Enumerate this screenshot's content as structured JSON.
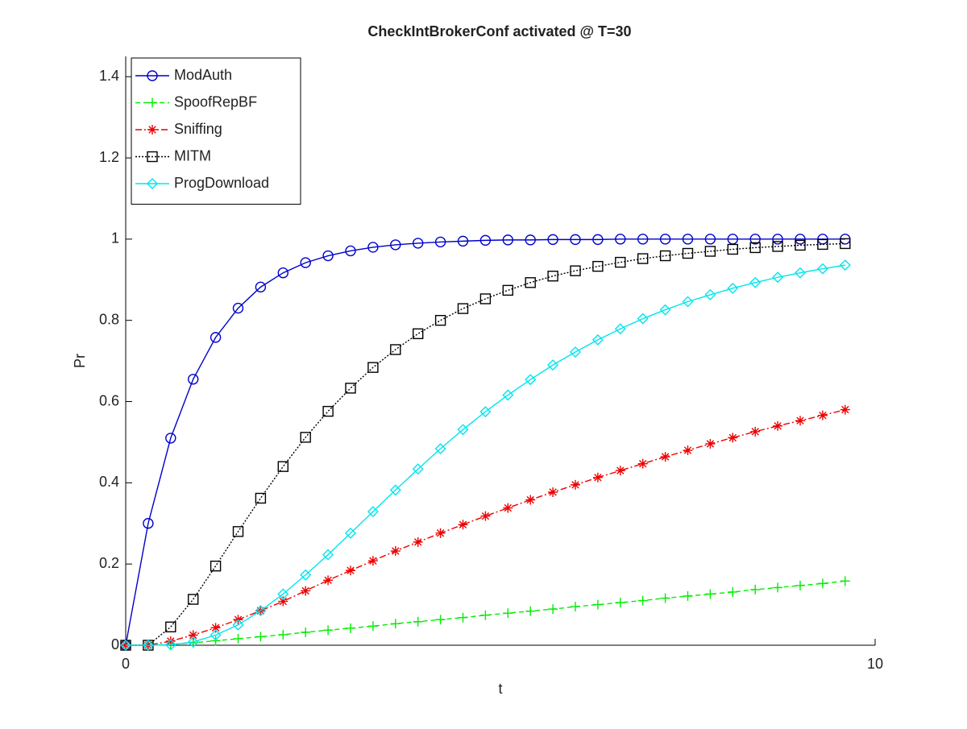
{
  "chart_data": {
    "type": "line",
    "title": "CheckIntBrokerConf activated @ T=30",
    "x_label": "t",
    "y_label": "Pr",
    "x": [
      0,
      0.3,
      0.6,
      0.9,
      1.2,
      1.5,
      1.8,
      2.1,
      2.4,
      2.7,
      3.0,
      3.3,
      3.6,
      3.9,
      4.2,
      4.5,
      4.8,
      5.1,
      5.4,
      5.7,
      6.0,
      6.3,
      6.6,
      6.9,
      7.2,
      7.5,
      7.8,
      8.1,
      8.4,
      8.7,
      9.0,
      9.3,
      9.6
    ],
    "series": [
      {
        "name": "ModAuth",
        "color": "#0000cc",
        "marker": "circle",
        "dash": "solid",
        "values": [
          0,
          0.3,
          0.51,
          0.655,
          0.758,
          0.83,
          0.882,
          0.917,
          0.942,
          0.959,
          0.971,
          0.98,
          0.986,
          0.99,
          0.993,
          0.995,
          0.997,
          0.998,
          0.998,
          0.999,
          0.999,
          0.999,
          1,
          1,
          1,
          1,
          1,
          1,
          1,
          1,
          1,
          1,
          1
        ]
      },
      {
        "name": "SpoofRepBF",
        "color": "#00ee00",
        "marker": "plus",
        "dash": "dashed",
        "values": [
          0,
          0,
          0.002,
          0.006,
          0.011,
          0.016,
          0.021,
          0.026,
          0.032,
          0.037,
          0.042,
          0.047,
          0.053,
          0.058,
          0.063,
          0.068,
          0.074,
          0.079,
          0.084,
          0.089,
          0.095,
          0.1,
          0.105,
          0.11,
          0.116,
          0.121,
          0.126,
          0.131,
          0.137,
          0.142,
          0.147,
          0.152,
          0.158
        ]
      },
      {
        "name": "Sniffing",
        "color": "#ee0000",
        "marker": "asterisk",
        "dash": "dashdot",
        "values": [
          0,
          0,
          0.01,
          0.025,
          0.043,
          0.063,
          0.085,
          0.108,
          0.134,
          0.16,
          0.184,
          0.208,
          0.232,
          0.254,
          0.276,
          0.297,
          0.318,
          0.338,
          0.358,
          0.377,
          0.395,
          0.413,
          0.43,
          0.447,
          0.464,
          0.48,
          0.496,
          0.511,
          0.526,
          0.54,
          0.553,
          0.566,
          0.58
        ]
      },
      {
        "name": "MITM",
        "color": "#000000",
        "marker": "square",
        "dash": "dotted",
        "values": [
          0,
          0,
          0.045,
          0.113,
          0.195,
          0.28,
          0.362,
          0.44,
          0.512,
          0.576,
          0.633,
          0.684,
          0.728,
          0.767,
          0.8,
          0.829,
          0.853,
          0.874,
          0.893,
          0.909,
          0.922,
          0.933,
          0.943,
          0.952,
          0.959,
          0.965,
          0.97,
          0.975,
          0.979,
          0.982,
          0.985,
          0.987,
          0.989
        ]
      },
      {
        "name": "ProgDownload",
        "color": "#00e5ee",
        "marker": "diamond",
        "dash": "solid",
        "values": [
          0,
          0,
          0.001,
          0.008,
          0.025,
          0.05,
          0.085,
          0.126,
          0.173,
          0.223,
          0.276,
          0.329,
          0.382,
          0.434,
          0.484,
          0.531,
          0.575,
          0.616,
          0.654,
          0.69,
          0.722,
          0.752,
          0.779,
          0.804,
          0.826,
          0.846,
          0.863,
          0.879,
          0.893,
          0.906,
          0.917,
          0.927,
          0.936
        ]
      }
    ],
    "xlim": [
      0,
      10
    ],
    "xticks": [
      0,
      10
    ],
    "ylim": [
      0,
      1.45
    ],
    "yticks": [
      0,
      0.2,
      0.4,
      0.6,
      0.8,
      1,
      1.2,
      1.4
    ],
    "legend_loc": "upper left"
  }
}
